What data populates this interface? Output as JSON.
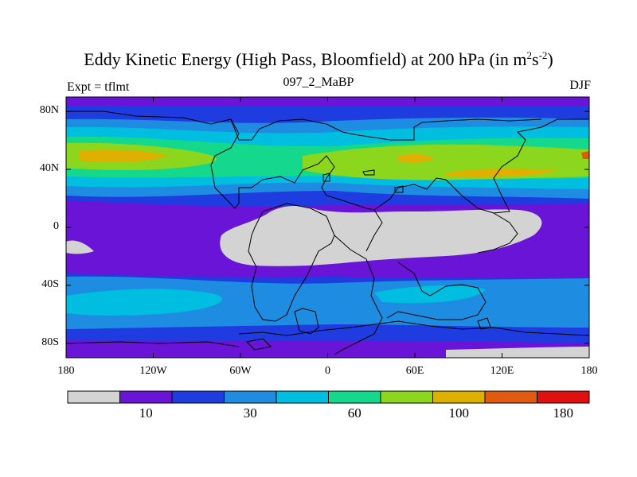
{
  "title": {
    "main": "Eddy Kinetic Energy (High Pass, Bloomfield) at 200 hPa (in m",
    "sup1": "2",
    "mid": "s",
    "sup2": "-2",
    "end": ")"
  },
  "left_string": "Expt = tflmt",
  "center_string": "097_2_MaBP",
  "right_string": "DJF",
  "map": {
    "lon_range": [
      -180,
      180
    ],
    "lat_range": [
      -90,
      90
    ],
    "y_ticks": [
      {
        "label": "80N",
        "lat": 80
      },
      {
        "label": "40N",
        "lat": 40
      },
      {
        "label": "0",
        "lat": 0
      },
      {
        "label": "40S",
        "lat": -40
      },
      {
        "label": "80S",
        "lat": -80
      }
    ],
    "x_ticks": [
      {
        "label": "180",
        "lon": -180
      },
      {
        "label": "120W",
        "lon": -120
      },
      {
        "label": "60W",
        "lon": -60
      },
      {
        "label": "0",
        "lon": 0
      },
      {
        "label": "60E",
        "lon": 60
      },
      {
        "label": "120E",
        "lon": 120
      },
      {
        "label": "180",
        "lon": 180
      }
    ]
  },
  "colorbar": {
    "colors": [
      "#d3d3d3",
      "#6a14d8",
      "#1e3ce0",
      "#1e8ce0",
      "#00bee0",
      "#14d98c",
      "#8cd61e",
      "#e0b000",
      "#e05a10",
      "#e01010"
    ],
    "labels": [
      {
        "text": "10",
        "index": 2
      },
      {
        "text": "30",
        "index": 4
      },
      {
        "text": "60",
        "index": 6
      },
      {
        "text": "100",
        "index": 8
      },
      {
        "text": "180",
        "index": 10
      }
    ]
  }
}
